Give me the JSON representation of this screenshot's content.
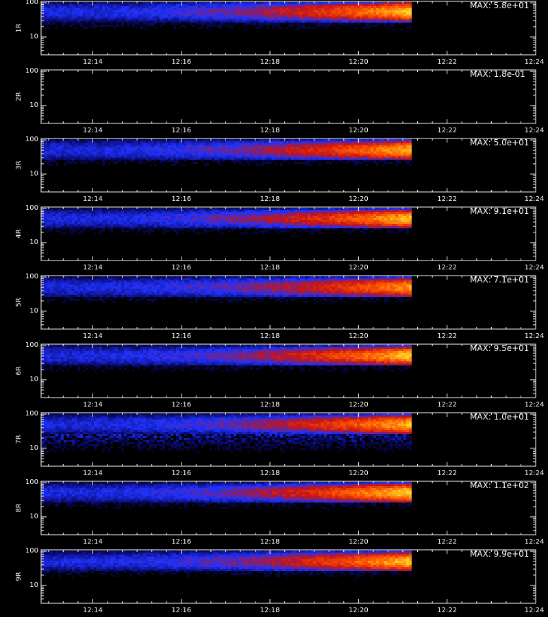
{
  "chart_data": {
    "type": "heatmap",
    "x_tick_labels": [
      "12:14",
      "12:16",
      "12:18",
      "12:20",
      "12:22",
      "12:24"
    ],
    "y_tick_labels": [
      "100",
      "10"
    ],
    "xlim": [
      "12:12:50",
      "12:24:00"
    ],
    "ylim": [
      3,
      110
    ],
    "yscale": "log",
    "data_end_time": "12:21:10",
    "colormap": [
      "#000000",
      "#0a0a6e",
      "#1e32ff",
      "#c81414",
      "#ff5a00",
      "#ffdc28"
    ],
    "panels": [
      {
        "label": "1R",
        "max_label": "MAX: 5.8e+01",
        "band_lo": 27,
        "band_hi": 110,
        "peak": 0.98,
        "noise": 0.18
      },
      {
        "label": "2R",
        "max_label": "MAX: 1.8e-01",
        "band_lo": 0,
        "band_hi": 0,
        "peak": 0.0,
        "noise": 0.0
      },
      {
        "label": "3R",
        "max_label": "MAX: 5.0e+01",
        "band_lo": 25,
        "band_hi": 100,
        "peak": 0.95,
        "noise": 0.15
      },
      {
        "label": "4R",
        "max_label": "MAX: 9.1e+01",
        "band_lo": 25,
        "band_hi": 100,
        "peak": 0.97,
        "noise": 0.15
      },
      {
        "label": "5R",
        "max_label": "MAX: 7.1e+01",
        "band_lo": 25,
        "band_hi": 100,
        "peak": 0.9,
        "noise": 0.15
      },
      {
        "label": "6R",
        "max_label": "MAX: 9.5e+01",
        "band_lo": 25,
        "band_hi": 100,
        "peak": 0.98,
        "noise": 0.15
      },
      {
        "label": "7R",
        "max_label": "MAX: 1.0e+01",
        "band_lo": 25,
        "band_hi": 100,
        "peak": 0.95,
        "noise": 0.35
      },
      {
        "label": "8R",
        "max_label": "MAX: 1.1e+02",
        "band_lo": 25,
        "band_hi": 100,
        "peak": 1.0,
        "noise": 0.15
      },
      {
        "label": "9R",
        "max_label": "MAX: 9.9e+01",
        "band_lo": 25,
        "band_hi": 100,
        "peak": 0.98,
        "noise": 0.15
      }
    ]
  }
}
